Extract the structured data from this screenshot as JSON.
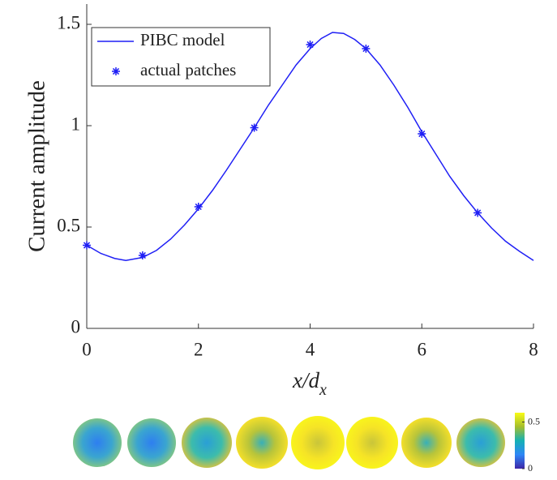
{
  "chart_data": {
    "type": "line",
    "ylabel": "Current amplitude",
    "xlabel": "x/d",
    "xlabel_subscript": "x",
    "xlim": [
      0,
      8
    ],
    "xticks": [
      0,
      2,
      4,
      6,
      8
    ],
    "ylim": [
      0,
      1.6
    ],
    "yticks": [
      0,
      0.5,
      1,
      1.5
    ],
    "legend": "upper left",
    "series": [
      {
        "name": "PIBC model",
        "type": "line",
        "color": "#1f1ff5",
        "x": [
          0,
          0.25,
          0.5,
          0.7,
          1,
          1.25,
          1.5,
          1.75,
          2,
          2.25,
          2.5,
          2.75,
          3,
          3.25,
          3.5,
          3.75,
          4,
          4.2,
          4.4,
          4.6,
          4.8,
          5,
          5.25,
          5.5,
          5.75,
          6,
          6.25,
          6.5,
          6.75,
          7,
          7.25,
          7.5,
          7.75,
          8
        ],
        "values": [
          0.41,
          0.37,
          0.345,
          0.335,
          0.35,
          0.385,
          0.44,
          0.51,
          0.59,
          0.68,
          0.78,
          0.885,
          0.99,
          1.1,
          1.2,
          1.3,
          1.38,
          1.43,
          1.46,
          1.455,
          1.425,
          1.38,
          1.3,
          1.2,
          1.09,
          0.97,
          0.86,
          0.75,
          0.655,
          0.57,
          0.495,
          0.43,
          0.38,
          0.335
        ]
      },
      {
        "name": "actual patches",
        "type": "scatter",
        "color": "#1f1ff5",
        "x": [
          0,
          1,
          2,
          3,
          4,
          5,
          6,
          7
        ],
        "values": [
          0.41,
          0.36,
          0.6,
          0.99,
          1.4,
          1.38,
          0.96,
          0.57
        ]
      }
    ],
    "colorbar": {
      "lim": [
        0,
        0.6
      ],
      "ticks": [
        0,
        0.5
      ]
    }
  }
}
